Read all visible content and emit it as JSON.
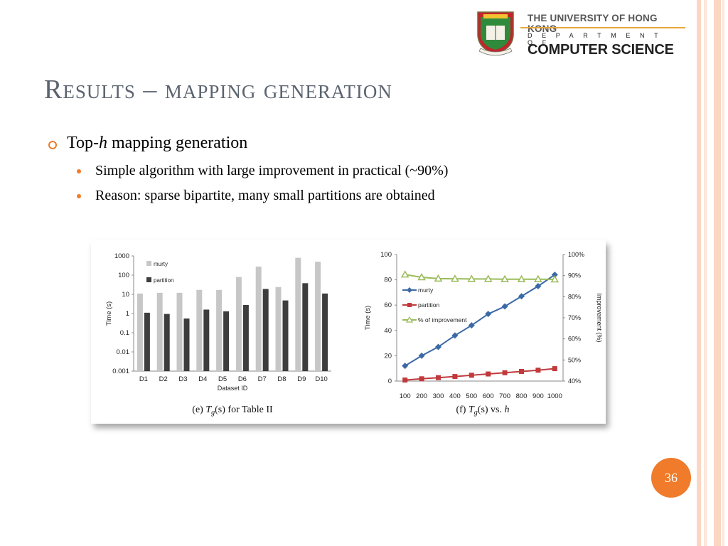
{
  "logo": {
    "university": "THE UNIVERSITY OF HONG KONG",
    "department": "DEPARTMENT OF",
    "name": "COMPUTER SCIENCE"
  },
  "title": "Results – mapping generation",
  "bullet": {
    "prefix": "Top-",
    "var": "h",
    "suffix": " mapping generation",
    "subs": [
      "Simple algorithm with large improvement in practical (~90%)",
      "Reason: sparse bipartite, many small partitions are obtained"
    ]
  },
  "slide_number": "36",
  "colors": {
    "accent": "#f07b2a",
    "murty_bar": "#c7c7c7",
    "partition_bar": "#3d3d3d",
    "murty_line": "#3b69a6",
    "partition_line": "#c0393b",
    "improvement_line": "#9bbb59"
  },
  "chart_data": [
    {
      "type": "bar",
      "caption": "(e) T_g(s) for Table II",
      "xlabel": "Dataset ID",
      "ylabel": "Time (s)",
      "yscale": "log",
      "ylim": [
        0.001,
        1000
      ],
      "yticks": [
        "0.001",
        "0.01",
        "0.1",
        "1",
        "10",
        "100",
        "1000"
      ],
      "categories": [
        "D1",
        "D2",
        "D3",
        "D4",
        "D5",
        "D6",
        "D7",
        "D8",
        "D9",
        "D10"
      ],
      "legend_position": "top-left",
      "series": [
        {
          "name": "murty",
          "values": [
            11,
            12,
            12,
            17,
            17,
            80,
            280,
            24,
            800,
            500
          ]
        },
        {
          "name": "partition",
          "values": [
            1.1,
            0.95,
            0.55,
            1.6,
            1.3,
            2.8,
            19,
            4.8,
            38,
            11
          ]
        }
      ]
    },
    {
      "type": "line",
      "caption": "(f) T_g(s) vs. h",
      "ylabel": "Time (s)",
      "y2label": "Improvement (%)",
      "ylim": [
        0,
        100
      ],
      "yticks": [
        "0",
        "20",
        "40",
        "60",
        "80",
        "100"
      ],
      "y2lim": [
        40,
        100
      ],
      "y2ticks": [
        "40%",
        "50%",
        "60%",
        "70%",
        "80%",
        "90%",
        "100%"
      ],
      "x": [
        "100",
        "200",
        "300",
        "400",
        "500",
        "600",
        "700",
        "800",
        "900",
        "1000"
      ],
      "legend_position": "left",
      "series": [
        {
          "name": "murty",
          "axis": "left",
          "values": [
            12,
            20,
            27,
            36,
            44,
            53,
            59,
            67,
            75,
            84
          ]
        },
        {
          "name": "partition",
          "axis": "left",
          "values": [
            0.8,
            1.8,
            2.7,
            3.6,
            4.6,
            5.6,
            6.6,
            7.6,
            8.6,
            9.8
          ]
        },
        {
          "name": "% of improvement",
          "axis": "right",
          "values": [
            90.5,
            89.2,
            88.6,
            88.5,
            88.4,
            88.4,
            88.3,
            88.3,
            88.3,
            88.2
          ]
        }
      ]
    }
  ]
}
